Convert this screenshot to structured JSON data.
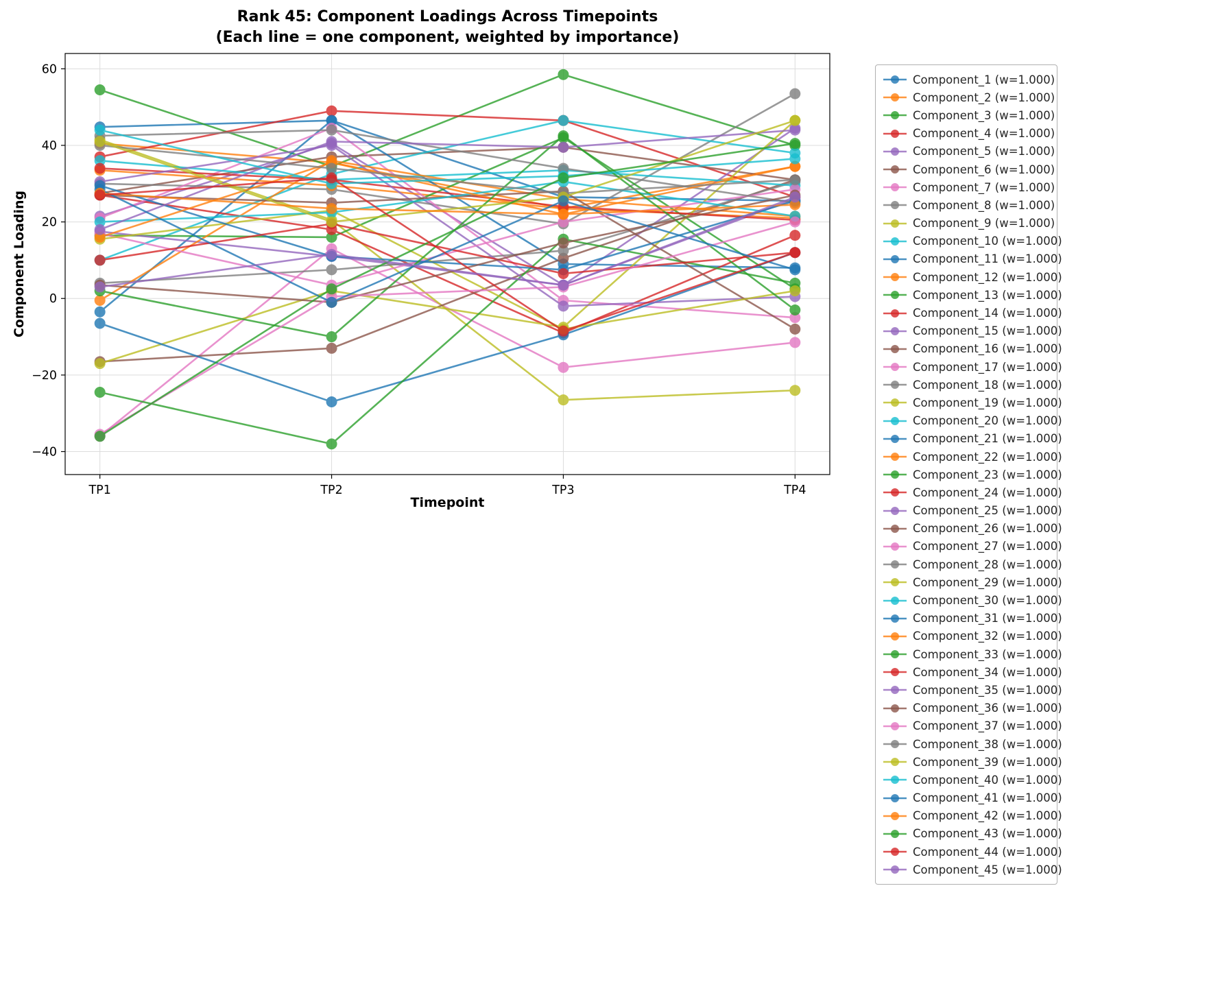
{
  "title": {
    "line1": "Rank 45: Component Loadings Across Timepoints",
    "line2": "(Each line = one component, weighted by importance)"
  },
  "chart_data": {
    "type": "line",
    "x_categories": [
      "TP1",
      "TP2",
      "TP3",
      "TP4"
    ],
    "xlabel": "Timepoint",
    "ylabel": "Component Loading",
    "ylim": [
      -46,
      64
    ],
    "yticks": [
      -40,
      -20,
      0,
      20,
      40,
      60
    ],
    "grid": true,
    "legend_position": "right",
    "palette": [
      "#1f77b4",
      "#ff7f0e",
      "#2ca02c",
      "#d62728",
      "#9467bd",
      "#8c564b",
      "#e377c2",
      "#7f7f7f",
      "#bcbd22",
      "#17becf"
    ],
    "series": [
      {
        "name": "Component_1",
        "legend_label": "Component_1 (w=1.000)",
        "values": [
          44.8,
          46.5,
          26.5,
          25.5
        ]
      },
      {
        "name": "Component_2",
        "legend_label": "Component_2 (w=1.000)",
        "values": [
          40.5,
          35.5,
          23.5,
          34.5
        ]
      },
      {
        "name": "Component_3",
        "legend_label": "Component_3 (w=1.000)",
        "values": [
          54.5,
          34.5,
          58.5,
          40.0
        ]
      },
      {
        "name": "Component_4",
        "legend_label": "Component_4 (w=1.000)",
        "values": [
          37.0,
          49.0,
          46.5,
          26.5
        ]
      },
      {
        "name": "Component_5",
        "legend_label": "Component_5 (w=1.000)",
        "values": [
          21.5,
          40.5,
          3.5,
          44.5
        ]
      },
      {
        "name": "Component_6",
        "legend_label": "Component_6 (w=1.000)",
        "values": [
          27.5,
          37.0,
          39.5,
          31.0
        ]
      },
      {
        "name": "Component_7",
        "legend_label": "Component_7 (w=1.000)",
        "values": [
          -36.0,
          13.0,
          -18.0,
          -11.5
        ]
      },
      {
        "name": "Component_8",
        "legend_label": "Component_8 (w=1.000)",
        "values": [
          30.0,
          28.5,
          19.5,
          53.5
        ]
      },
      {
        "name": "Component_9",
        "legend_label": "Component_9 (w=1.000)",
        "values": [
          41.5,
          20.5,
          -26.5,
          -24.0
        ]
      },
      {
        "name": "Component_10",
        "legend_label": "Component_10 (w=1.000)",
        "values": [
          10.0,
          32.5,
          46.5,
          38.0
        ]
      },
      {
        "name": "Component_11",
        "legend_label": "Component_11 (w=1.000)",
        "values": [
          -3.5,
          46.5,
          9.0,
          8.0
        ]
      },
      {
        "name": "Component_12",
        "legend_label": "Component_12 (w=1.000)",
        "values": [
          33.5,
          29.5,
          23.5,
          21.0
        ]
      },
      {
        "name": "Component_13",
        "legend_label": "Component_13 (w=1.000)",
        "values": [
          16.5,
          16.0,
          42.0,
          2.5
        ]
      },
      {
        "name": "Component_14",
        "legend_label": "Component_14 (w=1.000)",
        "values": [
          27.0,
          18.0,
          -9.0,
          16.5
        ]
      },
      {
        "name": "Component_15",
        "legend_label": "Component_15 (w=1.000)",
        "values": [
          17.5,
          11.0,
          3.5,
          26.0
        ]
      },
      {
        "name": "Component_16",
        "legend_label": "Component_16 (w=1.000)",
        "values": [
          -16.5,
          -13.0,
          10.5,
          31.0
        ]
      },
      {
        "name": "Component_17",
        "legend_label": "Component_17 (w=1.000)",
        "values": [
          21.0,
          44.5,
          -0.5,
          -5.0
        ]
      },
      {
        "name": "Component_18",
        "legend_label": "Component_18 (w=1.000)",
        "values": [
          4.0,
          7.5,
          12.5,
          30.5
        ]
      },
      {
        "name": "Component_19",
        "legend_label": "Component_19 (w=1.000)",
        "values": [
          -17.0,
          2.0,
          -7.5,
          46.5
        ]
      },
      {
        "name": "Component_20",
        "legend_label": "Component_20 (w=1.000)",
        "values": [
          36.0,
          31.0,
          33.5,
          29.5
        ]
      },
      {
        "name": "Component_21",
        "legend_label": "Component_21 (w=1.000)",
        "values": [
          -6.5,
          -27.0,
          -9.5,
          12.0
        ]
      },
      {
        "name": "Component_22",
        "legend_label": "Component_22 (w=1.000)",
        "values": [
          -0.5,
          36.0,
          26.0,
          21.5
        ]
      },
      {
        "name": "Component_23",
        "legend_label": "Component_23 (w=1.000)",
        "values": [
          -24.5,
          -38.0,
          15.5,
          4.0
        ]
      },
      {
        "name": "Component_24",
        "legend_label": "Component_24 (w=1.000)",
        "values": [
          34.0,
          31.0,
          24.0,
          20.5
        ]
      },
      {
        "name": "Component_25",
        "legend_label": "Component_25 (w=1.000)",
        "values": [
          30.5,
          40.0,
          -2.0,
          0.5
        ]
      },
      {
        "name": "Component_26",
        "legend_label": "Component_26 (w=1.000)",
        "values": [
          27.0,
          25.0,
          28.0,
          -8.0
        ]
      },
      {
        "name": "Component_27",
        "legend_label": "Component_27 (w=1.000)",
        "values": [
          17.0,
          3.5,
          20.0,
          28.5
        ]
      },
      {
        "name": "Component_28",
        "legend_label": "Component_28 (w=1.000)",
        "values": [
          42.5,
          44.0,
          34.0,
          25.0
        ]
      },
      {
        "name": "Component_29",
        "legend_label": "Component_29 (w=1.000)",
        "values": [
          15.5,
          23.0,
          -8.0,
          2.0
        ]
      },
      {
        "name": "Component_30",
        "legend_label": "Component_30 (w=1.000)",
        "values": [
          20.0,
          22.5,
          30.5,
          21.5
        ]
      },
      {
        "name": "Component_31",
        "legend_label": "Component_31 (w=1.000)",
        "values": [
          29.5,
          11.0,
          7.5,
          25.5
        ]
      },
      {
        "name": "Component_32",
        "legend_label": "Component_32 (w=1.000)",
        "values": [
          16.0,
          35.5,
          22.0,
          34.5
        ]
      },
      {
        "name": "Component_33",
        "legend_label": "Component_33 (w=1.000)",
        "values": [
          2.0,
          -10.0,
          42.5,
          -3.0
        ]
      },
      {
        "name": "Component_34",
        "legend_label": "Component_34 (w=1.000)",
        "values": [
          10.0,
          19.5,
          6.5,
          12.0
        ]
      },
      {
        "name": "Component_35",
        "legend_label": "Component_35 (w=1.000)",
        "values": [
          18.0,
          41.0,
          39.5,
          44.0
        ]
      },
      {
        "name": "Component_36",
        "legend_label": "Component_36 (w=1.000)",
        "values": [
          3.5,
          -1.0,
          14.5,
          27.0
        ]
      },
      {
        "name": "Component_37",
        "legend_label": "Component_37 (w=1.000)",
        "values": [
          -35.5,
          0.5,
          3.0,
          20.0
        ]
      },
      {
        "name": "Component_38",
        "legend_label": "Component_38 (w=1.000)",
        "values": [
          40.0,
          34.0,
          27.5,
          31.0
        ]
      },
      {
        "name": "Component_39",
        "legend_label": "Component_39 (w=1.000)",
        "values": [
          41.0,
          20.0,
          26.5,
          46.5
        ]
      },
      {
        "name": "Component_40",
        "legend_label": "Component_40 (w=1.000)",
        "values": [
          44.0,
          30.0,
          32.0,
          36.5
        ]
      },
      {
        "name": "Component_41",
        "legend_label": "Component_41 (w=1.000)",
        "values": [
          28.5,
          -1.0,
          25.5,
          7.5
        ]
      },
      {
        "name": "Component_42",
        "legend_label": "Component_42 (w=1.000)",
        "values": [
          27.5,
          23.5,
          22.0,
          24.5
        ]
      },
      {
        "name": "Component_43",
        "legend_label": "Component_43 (w=1.000)",
        "values": [
          -36.0,
          2.5,
          31.5,
          40.5
        ]
      },
      {
        "name": "Component_44",
        "legend_label": "Component_44 (w=1.000)",
        "values": [
          27.0,
          31.5,
          -8.5,
          12.0
        ]
      },
      {
        "name": "Component_45",
        "legend_label": "Component_45 (w=1.000)",
        "values": [
          3.0,
          11.5,
          3.5,
          26.5
        ]
      }
    ]
  }
}
